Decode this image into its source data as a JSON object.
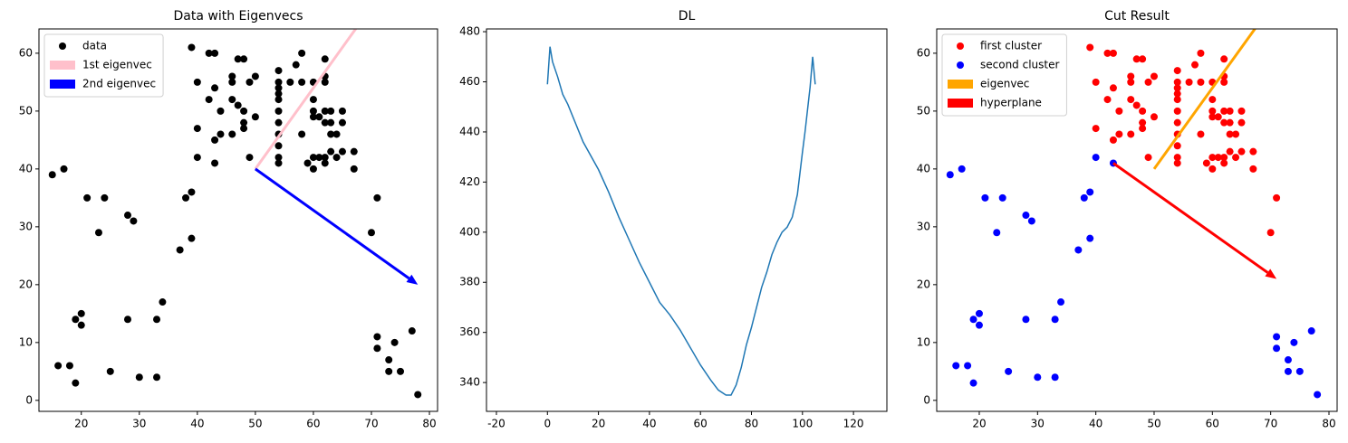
{
  "chart_data": [
    {
      "type": "scatter",
      "title": "Data with Eigenvecs",
      "series": [
        {
          "name": "data",
          "color": "#000000",
          "x": [
            15,
            17,
            21,
            24,
            23,
            28,
            29,
            19,
            20,
            20,
            16,
            18,
            19,
            25,
            30,
            33,
            28,
            33,
            34,
            37,
            38,
            39,
            39,
            40,
            43,
            71,
            71,
            73,
            74,
            73,
            75,
            77,
            78,
            39,
            40,
            42,
            43,
            40,
            42,
            43,
            44,
            43,
            44,
            46,
            46,
            46,
            47,
            48,
            47,
            48,
            48,
            48,
            49,
            49,
            50,
            50,
            46,
            54,
            54,
            54,
            54,
            54,
            54,
            54,
            54,
            54,
            54,
            54,
            56,
            57,
            58,
            58,
            58,
            59,
            60,
            60,
            60,
            60,
            60,
            61,
            61,
            60,
            62,
            62,
            62,
            62,
            62,
            62,
            62,
            63,
            63,
            63,
            63,
            64,
            64,
            65,
            65,
            65,
            67,
            67,
            70,
            71
          ],
          "values": [
            39,
            40,
            35,
            35,
            29,
            32,
            31,
            14,
            15,
            13,
            6,
            6,
            3,
            5,
            4,
            4,
            14,
            14,
            17,
            26,
            35,
            36,
            28,
            42,
            41,
            11,
            9,
            7,
            10,
            5,
            5,
            12,
            1,
            61,
            55,
            60,
            60,
            47,
            52,
            54,
            50,
            45,
            46,
            56,
            55,
            52,
            59,
            59,
            51,
            50,
            48,
            47,
            42,
            55,
            56,
            49,
            46,
            57,
            55,
            54,
            53,
            52,
            50,
            48,
            46,
            44,
            42,
            41,
            55,
            58,
            55,
            60,
            46,
            41,
            55,
            52,
            50,
            49,
            42,
            49,
            42,
            40,
            59,
            56,
            55,
            50,
            48,
            42,
            41,
            43,
            50,
            48,
            46,
            46,
            42,
            50,
            48,
            43,
            43,
            40,
            29,
            35
          ]
        }
      ],
      "arrows": [
        {
          "name": "1st eigenvec",
          "color": "#ffc0cb",
          "x": [
            50,
            70
          ],
          "y": [
            40,
            68
          ]
        },
        {
          "name": "2nd eigenvec",
          "color": "#0000ff",
          "x": [
            50,
            78
          ],
          "y": [
            40,
            20
          ]
        }
      ],
      "xlim": [
        12.7,
        81.4
      ],
      "ylim": [
        -1.9,
        64.2
      ],
      "xticks": [
        20,
        30,
        40,
        50,
        60,
        70,
        80
      ],
      "yticks": [
        0,
        10,
        20,
        30,
        40,
        50,
        60
      ],
      "legend": "upper left"
    },
    {
      "type": "line",
      "title": "DL",
      "color": "#1f77b4",
      "x": [
        0,
        1,
        2,
        4,
        6,
        8,
        10,
        14,
        20,
        24,
        28,
        32,
        36,
        40,
        44,
        48,
        52,
        56,
        60,
        64,
        67,
        70,
        72,
        74,
        76,
        78,
        80,
        82,
        84,
        86,
        88,
        90,
        92,
        94,
        96,
        98,
        100,
        101,
        102,
        103,
        104,
        105
      ],
      "values": [
        459,
        474,
        468,
        462,
        455,
        451,
        446,
        436,
        425,
        416,
        406,
        397,
        388,
        380,
        372,
        367,
        361,
        354,
        347,
        341,
        337,
        335,
        335,
        339,
        346,
        355,
        362,
        370,
        378,
        384,
        391,
        396,
        400,
        402,
        406,
        415,
        432,
        440,
        449,
        458,
        470,
        459
      ],
      "xlim": [
        -23.9,
        133.1
      ],
      "ylim": [
        328.5,
        481.1
      ],
      "xticks": [
        -20,
        0,
        20,
        40,
        60,
        80,
        100,
        120
      ],
      "yticks": [
        340,
        360,
        380,
        400,
        420,
        440,
        460,
        480
      ]
    },
    {
      "type": "scatter",
      "title": "Cut Result",
      "series": [
        {
          "name": "first cluster",
          "color": "#ff0000",
          "x": [
            39,
            40,
            42,
            43,
            40,
            42,
            43,
            44,
            43,
            44,
            46,
            46,
            46,
            47,
            48,
            47,
            48,
            48,
            48,
            49,
            49,
            50,
            50,
            46,
            54,
            54,
            54,
            54,
            54,
            54,
            54,
            54,
            54,
            54,
            54,
            56,
            57,
            58,
            58,
            58,
            59,
            60,
            60,
            60,
            60,
            60,
            61,
            61,
            60,
            62,
            62,
            62,
            62,
            62,
            62,
            62,
            63,
            63,
            63,
            63,
            64,
            64,
            65,
            65,
            65,
            67,
            67,
            70,
            71
          ],
          "values": [
            61,
            55,
            60,
            60,
            47,
            52,
            54,
            50,
            45,
            46,
            56,
            55,
            52,
            59,
            59,
            51,
            50,
            48,
            47,
            42,
            55,
            56,
            49,
            46,
            57,
            55,
            54,
            53,
            52,
            50,
            48,
            46,
            44,
            42,
            41,
            55,
            58,
            55,
            60,
            46,
            41,
            55,
            52,
            50,
            49,
            42,
            49,
            42,
            40,
            59,
            56,
            55,
            50,
            48,
            42,
            41,
            43,
            50,
            48,
            46,
            46,
            42,
            50,
            48,
            43,
            43,
            40,
            29,
            35
          ]
        },
        {
          "name": "second cluster",
          "color": "#0000ff",
          "x": [
            15,
            17,
            21,
            24,
            23,
            28,
            29,
            19,
            20,
            20,
            16,
            18,
            19,
            25,
            30,
            33,
            28,
            33,
            34,
            37,
            38,
            39,
            39,
            40,
            43,
            71,
            71,
            73,
            74,
            73,
            75,
            77,
            78
          ],
          "values": [
            39,
            40,
            35,
            35,
            29,
            32,
            31,
            14,
            15,
            13,
            6,
            6,
            3,
            5,
            4,
            4,
            14,
            14,
            17,
            26,
            35,
            36,
            28,
            42,
            41,
            11,
            9,
            7,
            10,
            5,
            5,
            12,
            1
          ]
        }
      ],
      "arrows": [
        {
          "name": "eigenvec",
          "color": "#ffa500",
          "x": [
            50,
            70
          ],
          "y": [
            40,
            68
          ]
        },
        {
          "name": "hyperplane",
          "color": "#ff0000",
          "x": [
            43,
            71
          ],
          "y": [
            41,
            21
          ]
        }
      ],
      "xlim": [
        12.7,
        81.4
      ],
      "ylim": [
        -1.9,
        64.2
      ],
      "xticks": [
        20,
        30,
        40,
        50,
        60,
        70,
        80
      ],
      "yticks": [
        0,
        10,
        20,
        30,
        40,
        50,
        60
      ],
      "legend": "upper left"
    }
  ]
}
